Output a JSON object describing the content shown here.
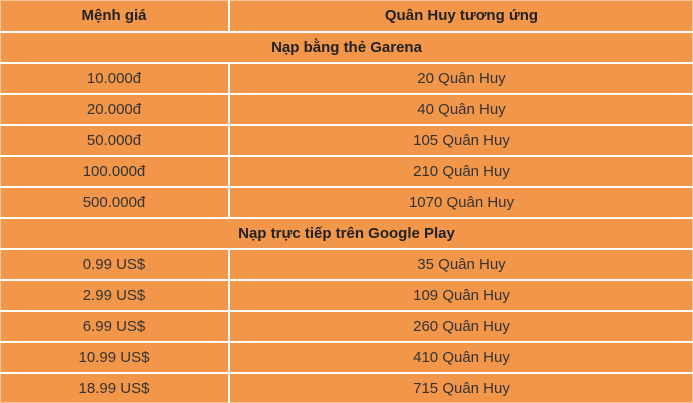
{
  "table": {
    "columns": [
      "Mệnh giá",
      "Quân Huy tương ứng"
    ],
    "sections": [
      {
        "title": "Nạp bằng thẻ Garena",
        "rows": [
          [
            "10.000đ",
            "20 Quân Huy"
          ],
          [
            "20.000đ",
            "40 Quân Huy"
          ],
          [
            "50.000đ",
            "105 Quân Huy"
          ],
          [
            "100.000đ",
            "210 Quân Huy"
          ],
          [
            "500.000đ",
            "1070 Quân Huy"
          ]
        ]
      },
      {
        "title": "Nạp trực tiếp trên Google Play",
        "rows": [
          [
            "0.99 US$",
            "35 Quân Huy"
          ],
          [
            "2.99 US$",
            "109 Quân Huy"
          ],
          [
            "6.99 US$",
            "260 Quân Huy"
          ],
          [
            "10.99 US$",
            "410 Quân Huy"
          ],
          [
            "18.99 US$",
            "715 Quân Huy"
          ]
        ]
      }
    ]
  },
  "colors": {
    "cell_bg": "#F2964A",
    "grid": "#FFFFFF",
    "text": "#333333",
    "text_strong": "#222222"
  }
}
